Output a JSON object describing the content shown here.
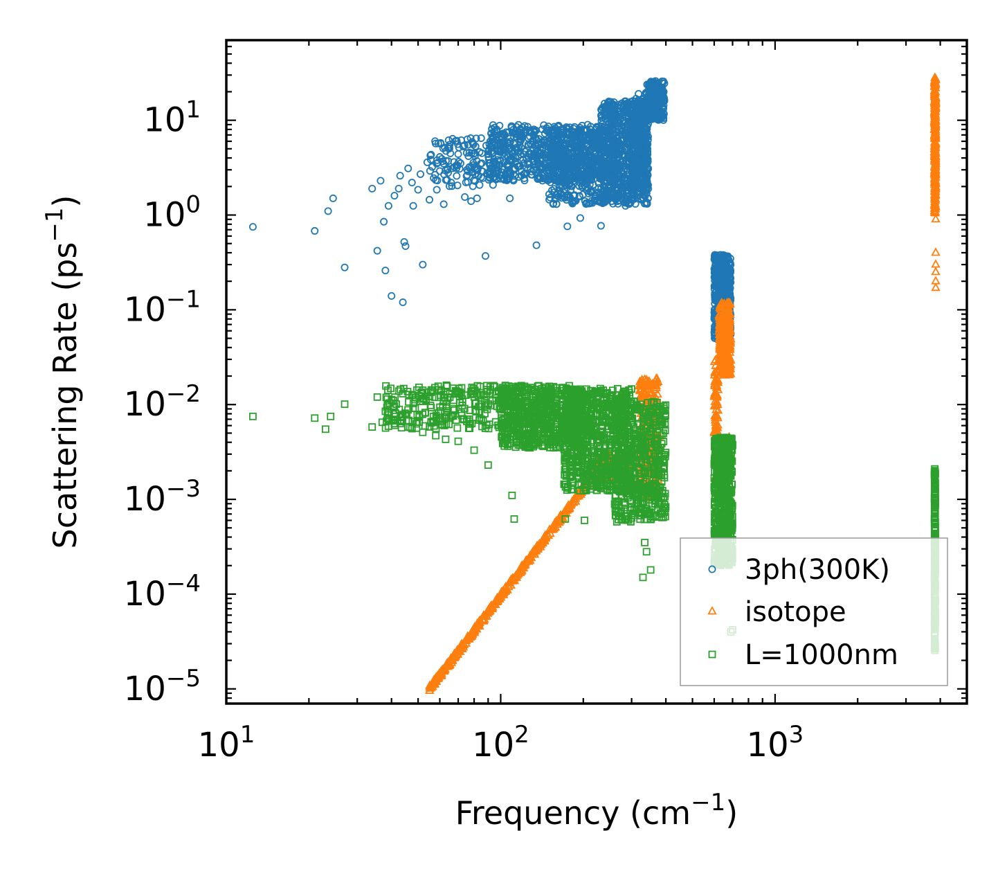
{
  "chart_data": {
    "type": "scatter",
    "xscale": "log",
    "yscale": "log",
    "xlim": [
      10,
      5000
    ],
    "ylim": [
      7e-06,
      70
    ],
    "xlabel": "Frequency (cm$^{-1}$)",
    "xlabel_parts": {
      "base": "Frequency (cm",
      "sup": "−1",
      "tail": ")"
    },
    "ylabel_parts": {
      "base": "Scattering Rate (ps",
      "sup": "−1",
      "tail": ")"
    },
    "x_ticks": [
      {
        "base": "10",
        "exp": "1",
        "value": 10
      },
      {
        "base": "10",
        "exp": "2",
        "value": 100
      },
      {
        "base": "10",
        "exp": "3",
        "value": 1000
      }
    ],
    "y_ticks": [
      {
        "base": "10",
        "exp": "1",
        "value": 10
      },
      {
        "base": "10",
        "exp": "0",
        "value": 1
      },
      {
        "base": "10",
        "exp": "−1",
        "value": 0.1
      },
      {
        "base": "10",
        "exp": "−2",
        "value": 0.01
      },
      {
        "base": "10",
        "exp": "−3",
        "value": 0.001
      },
      {
        "base": "10",
        "exp": "−4",
        "value": 0.0001
      },
      {
        "base": "10",
        "exp": "−5",
        "value": 1e-05
      }
    ],
    "legend": {
      "position": "lower-right",
      "entries": [
        {
          "label": "3ph(300K)",
          "marker": "circle",
          "color": "#1f77b4"
        },
        {
          "label": "isotope",
          "marker": "triangle",
          "color": "#ff7f0e"
        },
        {
          "label": "L=1000nm",
          "marker": "square",
          "color": "#2ca02c"
        }
      ]
    },
    "series": [
      {
        "name": "3ph(300K)",
        "marker": "circle",
        "color": "#1f77b4",
        "points": [
          [
            12.5,
            0.75
          ],
          [
            21,
            0.68
          ],
          [
            23.5,
            1.1
          ],
          [
            24.5,
            1.5
          ],
          [
            27,
            0.28
          ],
          [
            34,
            1.9
          ],
          [
            35.5,
            0.42
          ],
          [
            36.5,
            2.3
          ],
          [
            37.5,
            0.85
          ],
          [
            38,
            0.26
          ],
          [
            39,
            1.25
          ],
          [
            40,
            0.14
          ],
          [
            41,
            1.6
          ],
          [
            42.5,
            1.9
          ],
          [
            43,
            2.6
          ],
          [
            44,
            0.12
          ],
          [
            44.5,
            0.52
          ],
          [
            45,
            0.47
          ],
          [
            46,
            3.1
          ],
          [
            47.5,
            2.2
          ],
          [
            48,
            1.25
          ],
          [
            50,
            1.85
          ],
          [
            51,
            2.7
          ],
          [
            52,
            0.3
          ],
          [
            54,
            3.6
          ],
          [
            55,
            1.45
          ],
          [
            57,
            2.45
          ],
          [
            58.5,
            1.85
          ],
          [
            60,
            4.1
          ],
          [
            62,
            1.3
          ],
          [
            64,
            3.0
          ],
          [
            66,
            2.2
          ],
          [
            70,
            4.4
          ],
          [
            74,
            1.55
          ],
          [
            78,
            1.4
          ],
          [
            82,
            1.5
          ],
          [
            88,
            0.37
          ],
          [
            108,
            1.5
          ],
          [
            135,
            0.48
          ],
          [
            175,
            0.76
          ],
          [
            195,
            0.93
          ],
          [
            232,
            0.77
          ],
          [
            262,
            1.6
          ],
          [
            285,
            1.25
          ],
          [
            300,
            1.45
          ],
          [
            318,
            19
          ],
          [
            325,
            14
          ],
          [
            338,
            19.5
          ]
        ],
        "clusters": [
          {
            "x_range": [
              55,
              95
            ],
            "y_range": [
              2.0,
              6.5
            ],
            "n": 120
          },
          {
            "x_range": [
              90,
              230
            ],
            "y_range": [
              2.3,
              9.0
            ],
            "n": 620
          },
          {
            "x_range": [
              150,
              270
            ],
            "y_range": [
              1.3,
              8.0
            ],
            "n": 420
          },
          {
            "x_range": [
              230,
              345
            ],
            "y_range": [
              1.3,
              16.0
            ],
            "n": 620
          },
          {
            "x_range": [
              300,
              345
            ],
            "y_range": [
              2.0,
              17.0
            ],
            "n": 280
          },
          {
            "x_range": [
              340,
              395
            ],
            "y_range": [
              10.0,
              26.0
            ],
            "n": 230
          },
          {
            "x_range": [
              600,
              690
            ],
            "y_range": [
              0.05,
              0.38
            ],
            "n": 520
          }
        ]
      },
      {
        "name": "isotope",
        "marker": "triangle",
        "color": "#ff7f0e",
        "points": [
          [
            3850,
            0.17
          ],
          [
            3850,
            0.2
          ],
          [
            3850,
            0.25
          ],
          [
            3850,
            0.3
          ],
          [
            3850,
            0.4
          ],
          [
            3850,
            0.9
          ],
          [
            604,
            0.0041
          ],
          [
            604,
            0.0023
          ],
          [
            604,
            0.0017
          ],
          [
            684,
            0.0026
          ],
          [
            684,
            0.0031
          ],
          [
            684,
            0.0014
          ],
          [
            684,
            0.0027
          ],
          [
            610,
            0.0058
          ],
          [
            680,
            0.0045
          ],
          [
            380,
            0.0009
          ]
        ],
        "trend": {
          "x_range": [
            55,
            250
          ],
          "y_range": [
            1e-05,
            0.003
          ],
          "n": 420
        },
        "clusters": [
          {
            "x_range": [
              220,
              300
            ],
            "y_range": [
              0.0016,
              0.0028
            ],
            "n": 140
          },
          {
            "x_range": [
              320,
              380
            ],
            "y_range": [
              0.001,
              0.019
            ],
            "n": 260
          },
          {
            "x_range": [
              600,
              620
            ],
            "y_range": [
              0.004,
              0.03
            ],
            "n": 60
          },
          {
            "x_range": [
              625,
              690
            ],
            "y_range": [
              0.02,
              0.12
            ],
            "n": 300
          },
          {
            "x_range": [
              3810,
              3850
            ],
            "y_range": [
              1.0,
              28.0
            ],
            "n": 320
          }
        ]
      },
      {
        "name": "L=1000nm",
        "marker": "square",
        "color": "#2ca02c",
        "points": [
          [
            12.5,
            0.0075
          ],
          [
            21,
            0.0072
          ],
          [
            23,
            0.0055
          ],
          [
            24,
            0.0075
          ],
          [
            27,
            0.0101
          ],
          [
            34,
            0.0058
          ],
          [
            35.5,
            0.012
          ],
          [
            37,
            0.0065
          ],
          [
            38,
            0.0085
          ],
          [
            41,
            0.0063
          ],
          [
            43,
            0.0063
          ],
          [
            46,
            0.0058
          ],
          [
            52,
            0.0051
          ],
          [
            58,
            0.0047
          ],
          [
            63,
            0.0043
          ],
          [
            70,
            0.0041
          ],
          [
            80,
            0.0033
          ],
          [
            90,
            0.0023
          ],
          [
            110,
            0.0011
          ],
          [
            112,
            0.00062
          ],
          [
            172,
            0.00062
          ],
          [
            202,
            0.0006
          ],
          [
            265,
            0.00058
          ],
          [
            298,
            0.00058
          ],
          [
            330,
            0.00015
          ],
          [
            335,
            0.00035
          ],
          [
            340,
            0.00028
          ],
          [
            352,
            0.00018
          ],
          [
            690,
            4e-05
          ],
          [
            700,
            4.2e-05
          ]
        ],
        "clusters": [
          {
            "x_range": [
              38,
              110
            ],
            "y_range": [
              0.0055,
              0.016
            ],
            "n": 260
          },
          {
            "x_range": [
              100,
              200
            ],
            "y_range": [
              0.0035,
              0.016
            ],
            "n": 650
          },
          {
            "x_range": [
              170,
              300
            ],
            "y_range": [
              0.0012,
              0.015
            ],
            "n": 700
          },
          {
            "x_range": [
              260,
              400
            ],
            "y_range": [
              0.0006,
              0.011
            ],
            "n": 520
          },
          {
            "x_range": [
              600,
              700
            ],
            "y_range": [
              0.0002,
              0.0045
            ],
            "n": 560
          },
          {
            "x_range": [
              3810,
              3840
            ],
            "y_range": [
              2.5e-05,
              0.0021
            ],
            "n": 260
          }
        ]
      }
    ]
  }
}
